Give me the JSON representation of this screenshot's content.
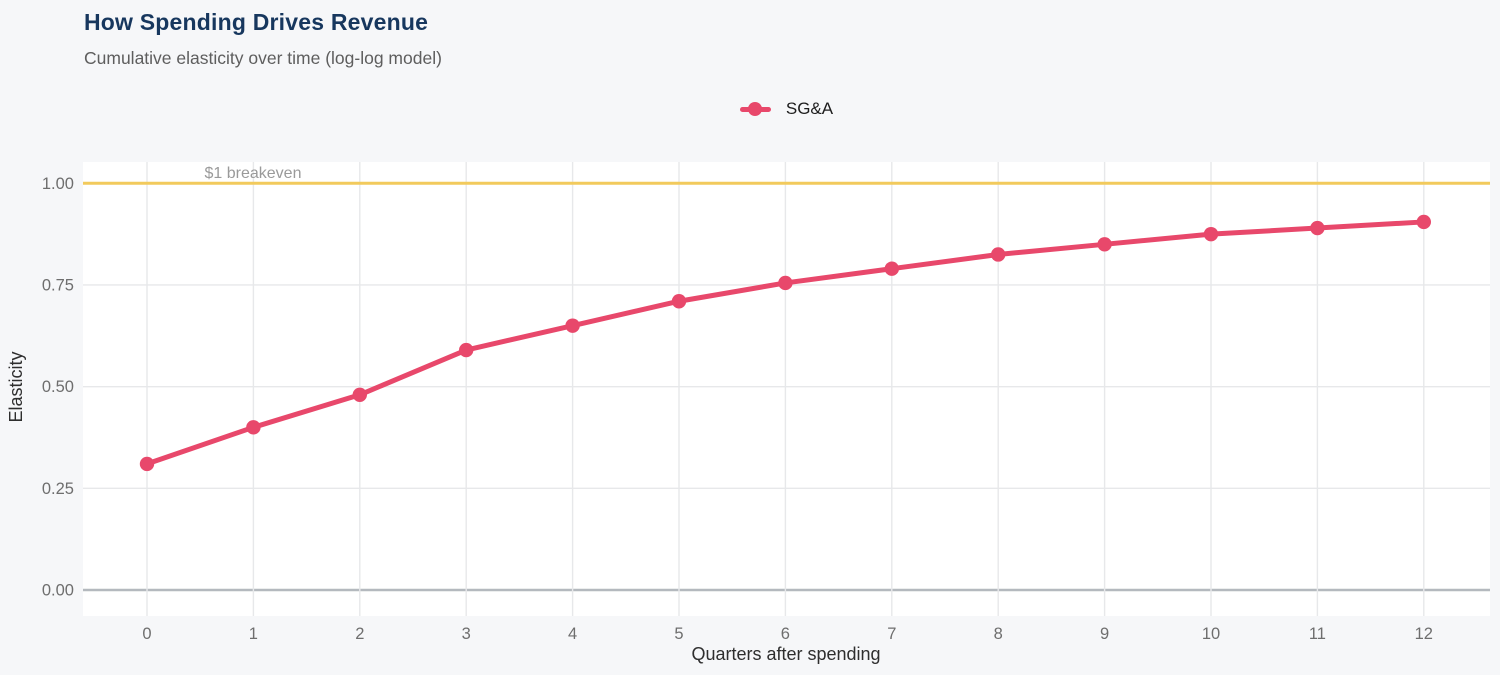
{
  "header": {
    "title": "How Spending Drives Revenue",
    "subtitle": "Cumulative elasticity over time (log-log model)"
  },
  "legend": {
    "items": [
      {
        "label": "SG&A",
        "color": "#e8486b"
      }
    ]
  },
  "annotation": {
    "breakeven_label": "$1 breakeven"
  },
  "axes": {
    "x_label": "Quarters after spending",
    "y_label": "Elasticity",
    "x_ticks": [
      0,
      1,
      2,
      3,
      4,
      5,
      6,
      7,
      8,
      9,
      10,
      11,
      12
    ],
    "y_ticks": [
      {
        "value": 0,
        "label": "0.00"
      },
      {
        "value": 0.25,
        "label": "0.25"
      },
      {
        "value": 0.5,
        "label": "0.50"
      },
      {
        "value": 0.75,
        "label": "0.75"
      },
      {
        "value": 1,
        "label": "1.00"
      }
    ]
  },
  "colors": {
    "background": "#f6f7f9",
    "panel": "#ffffff",
    "grid": "#e7e8ea",
    "axis_line": "#b4b9be",
    "series": "#e8486b",
    "breakeven": "#f2ca5c",
    "title": "#17375e",
    "subtitle": "#5e5e5e",
    "tick_label": "#6e6e6e",
    "axis_title": "#2e2e2e",
    "annotation_text": "#9a9a9a"
  },
  "chart_data": {
    "type": "line",
    "title": "How Spending Drives Revenue",
    "subtitle": "Cumulative elasticity over time (log-log model)",
    "x": [
      0,
      1,
      2,
      3,
      4,
      5,
      6,
      7,
      8,
      9,
      10,
      11,
      12
    ],
    "series": [
      {
        "name": "SG&A",
        "color": "#e8486b",
        "values": [
          0.31,
          0.4,
          0.48,
          0.59,
          0.65,
          0.71,
          0.755,
          0.79,
          0.825,
          0.85,
          0.875,
          0.89,
          0.905
        ]
      }
    ],
    "xlabel": "Quarters after spending",
    "ylabel": "Elasticity",
    "xlim": [
      -0.6,
      12.6
    ],
    "ylim": [
      -0.06,
      1.05
    ],
    "grid": true,
    "legend_position": "top-center",
    "annotations": [
      {
        "type": "hline",
        "y": 1.0,
        "label": "$1 breakeven",
        "color": "#f2ca5c"
      }
    ]
  }
}
